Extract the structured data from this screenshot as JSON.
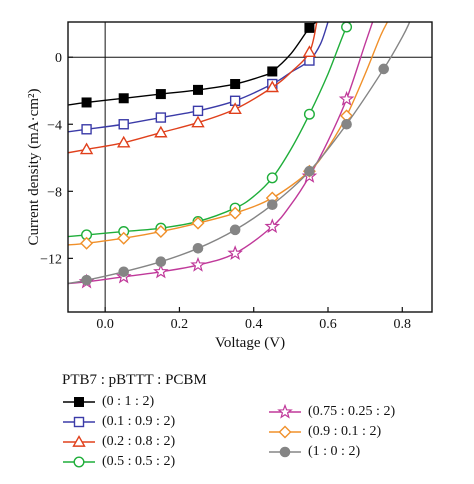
{
  "chart_data": {
    "type": "line",
    "xlabel": "Voltage (V)",
    "ylabel": "Current density (mA·cm²)",
    "xlim": [
      -0.1,
      0.88
    ],
    "ylim": [
      -15.2,
      2.1
    ],
    "xticks": [
      0.0,
      0.2,
      0.4,
      0.6,
      0.8
    ],
    "xtick_labels": [
      "0.0",
      "0.2",
      "0.4",
      "0.6",
      "0.8"
    ],
    "yticks": [
      0,
      -4,
      -8,
      -12
    ],
    "ytick_labels": [
      "0",
      "−4",
      "−8",
      "−12"
    ],
    "grid": false,
    "legend_title": "PTB7 : pBTTT : PCBM",
    "legend_position": "below",
    "series": [
      {
        "name": "(0 : 1 : 2)",
        "marker": "filled-square",
        "color": "#000000",
        "x": [
          -0.05,
          0.05,
          0.15,
          0.25,
          0.35,
          0.45,
          0.55
        ],
        "y": [
          -2.7,
          -2.45,
          -2.2,
          -1.95,
          -1.6,
          -0.85,
          1.75
        ],
        "line_x": [
          -0.1,
          -0.05,
          0.05,
          0.15,
          0.25,
          0.35,
          0.42,
          0.45,
          0.5,
          0.55,
          0.57
        ],
        "line_y": [
          -2.85,
          -2.7,
          -2.45,
          -2.2,
          -1.95,
          -1.6,
          -1.15,
          -0.85,
          0.2,
          1.75,
          2.1
        ]
      },
      {
        "name": "(0.1 : 0.9 : 2)",
        "marker": "open-square",
        "color": "#3b3ba8",
        "x": [
          -0.05,
          0.05,
          0.15,
          0.25,
          0.35,
          0.45,
          0.55
        ],
        "y": [
          -4.3,
          -4.0,
          -3.6,
          -3.2,
          -2.6,
          -1.6,
          -0.2
        ],
        "line_x": [
          -0.1,
          -0.05,
          0.05,
          0.15,
          0.25,
          0.35,
          0.45,
          0.5,
          0.55,
          0.58,
          0.6
        ],
        "line_y": [
          -4.45,
          -4.3,
          -4.0,
          -3.6,
          -3.2,
          -2.6,
          -1.6,
          -0.9,
          -0.2,
          0.8,
          2.1
        ]
      },
      {
        "name": "(0.2 : 0.8 : 2)",
        "marker": "open-triangle",
        "color": "#e0401c",
        "x": [
          -0.05,
          0.05,
          0.15,
          0.25,
          0.35,
          0.45,
          0.55
        ],
        "y": [
          -5.5,
          -5.1,
          -4.5,
          -3.9,
          -3.1,
          -1.8,
          0.3
        ],
        "line_x": [
          -0.1,
          -0.05,
          0.05,
          0.15,
          0.25,
          0.35,
          0.45,
          0.5,
          0.55,
          0.57
        ],
        "line_y": [
          -5.7,
          -5.5,
          -5.1,
          -4.5,
          -3.9,
          -3.1,
          -1.8,
          -0.9,
          0.3,
          2.1
        ]
      },
      {
        "name": "(0.5 : 0.5 : 2)",
        "marker": "open-circle",
        "color": "#1fae3a",
        "x": [
          -0.05,
          0.05,
          0.15,
          0.25,
          0.35,
          0.45,
          0.55,
          0.65
        ],
        "y": [
          -10.6,
          -10.4,
          -10.2,
          -9.8,
          -9.0,
          -7.2,
          -3.4,
          1.8
        ],
        "line_x": [
          -0.1,
          -0.05,
          0.05,
          0.15,
          0.25,
          0.35,
          0.4,
          0.45,
          0.5,
          0.55,
          0.6,
          0.65,
          0.67
        ],
        "line_y": [
          -10.7,
          -10.6,
          -10.4,
          -10.2,
          -9.8,
          -9.0,
          -8.3,
          -7.2,
          -5.5,
          -3.4,
          -1.0,
          1.8,
          2.1
        ]
      },
      {
        "name": "(0.75 : 0.25 : 2)",
        "marker": "open-star",
        "color": "#c0399a",
        "x": [
          -0.05,
          0.05,
          0.15,
          0.25,
          0.35,
          0.45,
          0.55,
          0.65
        ],
        "y": [
          -13.4,
          -13.1,
          -12.8,
          -12.4,
          -11.7,
          -10.1,
          -7.1,
          -2.5
        ],
        "line_x": [
          -0.1,
          -0.05,
          0.05,
          0.15,
          0.25,
          0.35,
          0.45,
          0.5,
          0.55,
          0.6,
          0.65,
          0.7,
          0.72
        ],
        "line_y": [
          -13.5,
          -13.4,
          -13.1,
          -12.8,
          -12.4,
          -11.7,
          -10.1,
          -8.8,
          -7.1,
          -5.0,
          -2.5,
          0.8,
          2.1
        ]
      },
      {
        "name": "(0.9 : 0.1 : 2)",
        "marker": "open-diamond",
        "color": "#f0902a",
        "x": [
          -0.05,
          0.05,
          0.15,
          0.25,
          0.35,
          0.45,
          0.55,
          0.65
        ],
        "y": [
          -11.1,
          -10.8,
          -10.4,
          -9.9,
          -9.3,
          -8.4,
          -6.8,
          -3.5
        ],
        "line_x": [
          -0.1,
          -0.05,
          0.05,
          0.15,
          0.25,
          0.35,
          0.45,
          0.55,
          0.6,
          0.65,
          0.7,
          0.74,
          0.76
        ],
        "line_y": [
          -11.2,
          -11.1,
          -10.8,
          -10.4,
          -9.9,
          -9.3,
          -8.4,
          -6.8,
          -5.4,
          -3.5,
          -1.0,
          1.2,
          2.1
        ]
      },
      {
        "name": "(1 : 0 : 2)",
        "marker": "filled-circle",
        "color": "#858585",
        "x": [
          -0.05,
          0.05,
          0.15,
          0.25,
          0.35,
          0.45,
          0.55,
          0.65,
          0.75
        ],
        "y": [
          -13.3,
          -12.8,
          -12.2,
          -11.4,
          -10.3,
          -8.8,
          -6.8,
          -4.0,
          -0.7
        ],
        "line_x": [
          -0.1,
          -0.05,
          0.05,
          0.15,
          0.25,
          0.35,
          0.45,
          0.55,
          0.65,
          0.75,
          0.8,
          0.82
        ],
        "line_y": [
          -13.5,
          -13.3,
          -12.8,
          -12.2,
          -11.4,
          -10.3,
          -8.8,
          -6.8,
          -4.0,
          -0.7,
          1.2,
          2.1
        ]
      }
    ]
  }
}
